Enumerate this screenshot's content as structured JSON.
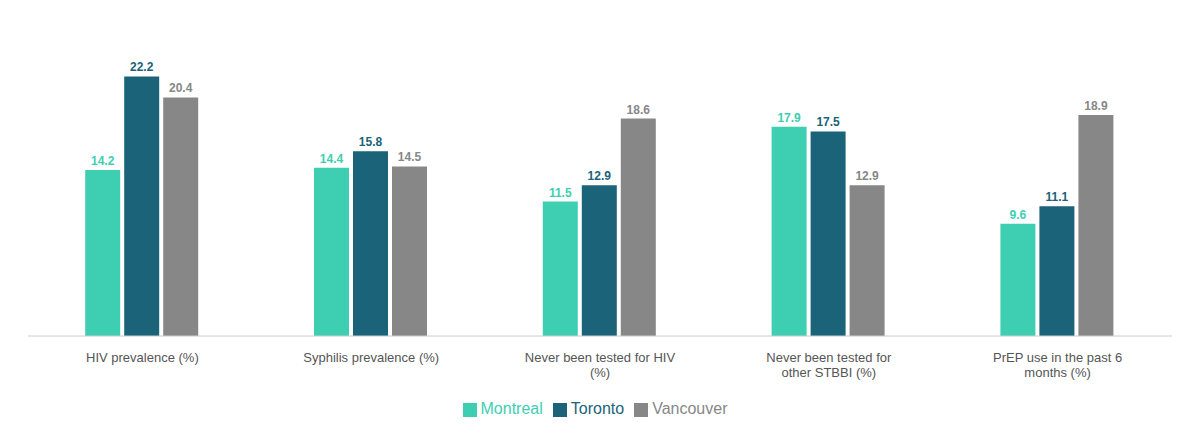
{
  "chart_data": {
    "type": "bar",
    "categories": [
      "HIV prevalence (%)",
      "Syphilis prevalence (%)",
      "Never been tested for HIV\n(%)",
      "Never been tested for\nother STBBI (%)",
      "PrEP use in the past 6\nmonths (%)"
    ],
    "series": [
      {
        "name": "Montreal",
        "color": "#3ecfb2",
        "values": [
          14.2,
          14.4,
          11.5,
          17.9,
          9.6
        ]
      },
      {
        "name": "Toronto",
        "color": "#1a6378",
        "values": [
          22.2,
          15.8,
          12.9,
          17.5,
          11.1
        ]
      },
      {
        "name": "Vancouver",
        "color": "#878787",
        "values": [
          20.4,
          14.5,
          18.6,
          12.9,
          18.9
        ]
      }
    ],
    "ylim": [
      0,
      26
    ],
    "data_labels": true,
    "tick_labels": "x",
    "grid": false,
    "legend": "bottom"
  }
}
